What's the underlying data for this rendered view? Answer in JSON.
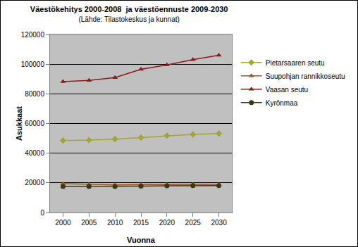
{
  "chart_data": {
    "type": "line",
    "title": "Väestökehitys 2000-2008  ja väestöennuste 2009-2030",
    "subtitle": "(Lähde: Tilastokeskus ja kunnat)",
    "x_label": "Vuonna",
    "y_label": "Asukkaat",
    "categories": [
      "2000",
      "2005",
      "2010",
      "2015",
      "2020",
      "2025",
      "2030"
    ],
    "series": [
      {
        "name": "Pietarsaaren seutu",
        "color": "#A3A336",
        "marker": "diamond",
        "line_style": "solid",
        "values": [
          48500,
          48800,
          49500,
          50500,
          51800,
          52600,
          53300
        ]
      },
      {
        "name": "Suupohjan rannikkoseutu",
        "color": "#A0522D",
        "marker": "triangle-up",
        "line_style": "solid",
        "values": [
          19500,
          19000,
          18600,
          18800,
          18900,
          19000,
          19000
        ]
      },
      {
        "name": "Vaasan seutu",
        "color": "#8B1A1A",
        "marker": "triangle-up",
        "line_style": "solid",
        "values": [
          88200,
          89000,
          91000,
          96500,
          99500,
          103000,
          106000
        ]
      },
      {
        "name": "Kyrönmaa",
        "color": "#3A3A10",
        "marker": "circle",
        "line_style": "solid",
        "values": [
          17500,
          17500,
          17500,
          17800,
          18000,
          18200,
          18200
        ]
      }
    ],
    "ylim": [
      0,
      120000
    ],
    "yticks": [
      0,
      20000,
      40000,
      60000,
      80000,
      100000,
      120000
    ],
    "grid": true,
    "legend": "right"
  }
}
